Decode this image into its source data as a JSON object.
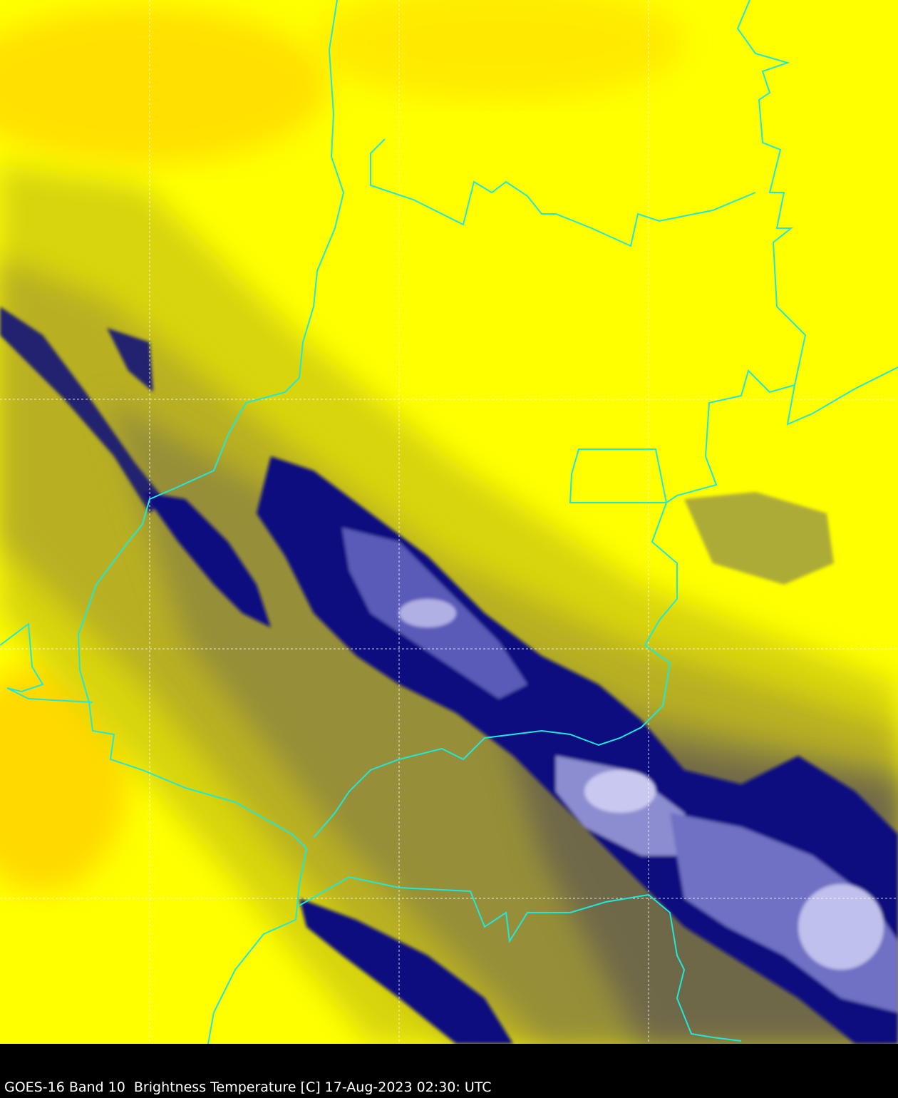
{
  "caption": {
    "text": "GOES-16 Band 10  Brightness Temperature [C] 17-Aug-2023 02:30: UTC"
  },
  "colors": {
    "warm": "#ffff00",
    "warmest": "#ffd800",
    "mid": "#a8a030",
    "cold": "#10107a",
    "coldest": "#c8c8f0",
    "borders": "#20e0d0",
    "gridlines": "#ffffff",
    "background": "#000000"
  }
}
